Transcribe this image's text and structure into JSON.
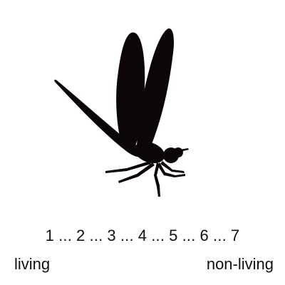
{
  "stimulus": {
    "icon": "dragonfly-silhouette-icon",
    "color": "#0d0606"
  },
  "scale": {
    "points": [
      "1",
      "2",
      "3",
      "4",
      "5",
      "6",
      "7"
    ],
    "separator": "...",
    "left_anchor": "living",
    "right_anchor": "non-living"
  }
}
